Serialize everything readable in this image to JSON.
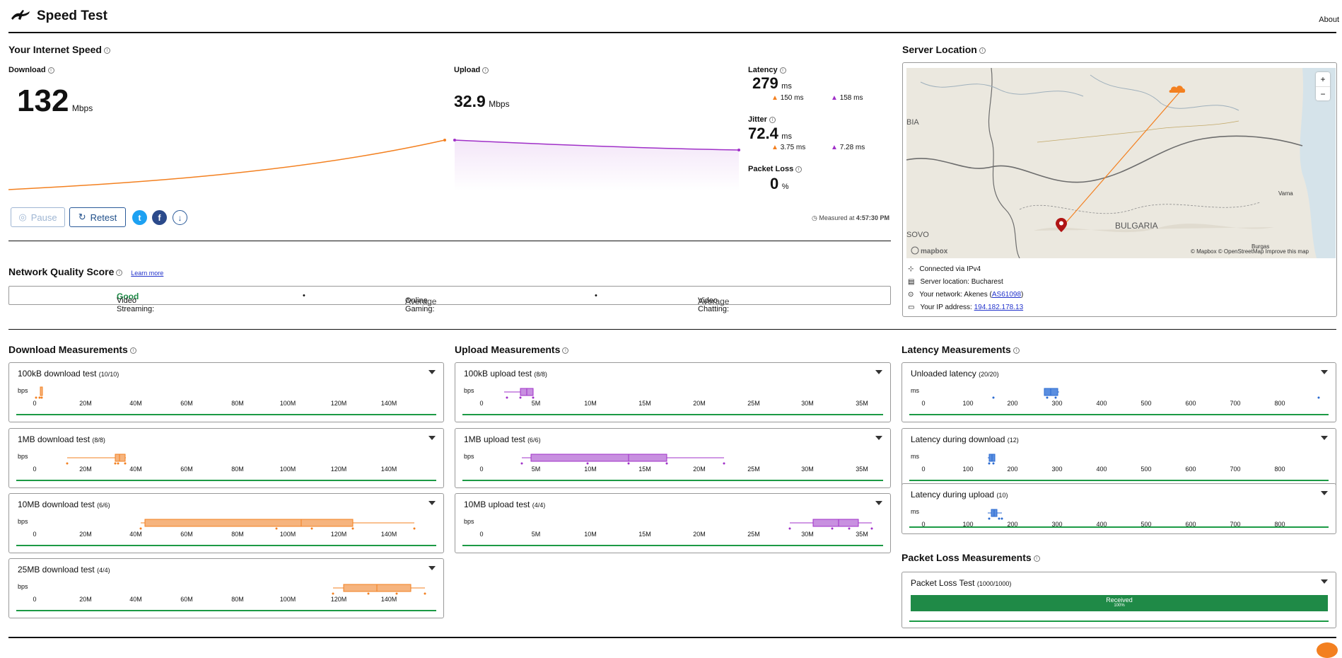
{
  "app": {
    "title": "Speed Test",
    "about": "About"
  },
  "speed": {
    "section_title": "Your Internet Speed",
    "download_label": "Download",
    "download_value": "132",
    "download_unit": "Mbps",
    "upload_label": "Upload",
    "upload_value": "32.9",
    "upload_unit": "Mbps",
    "latency_label": "Latency",
    "latency_value": "279",
    "latency_unit": "ms",
    "latency_down": "150 ms",
    "latency_up": "158 ms",
    "jitter_label": "Jitter",
    "jitter_value": "72.4",
    "jitter_unit": "ms",
    "jitter_down": "3.75 ms",
    "jitter_up": "7.28 ms",
    "packet_loss_label": "Packet Loss",
    "packet_loss_value": "0",
    "packet_loss_unit": "%",
    "pause_label": "Pause",
    "retest_label": "Retest",
    "measured_at_prefix": "Measured at",
    "measured_at_time": "4:57:30 PM"
  },
  "quality": {
    "title": "Network Quality Score",
    "learn_more": "Learn more",
    "items": [
      {
        "label": "Video Streaming:",
        "value": "Good",
        "color": "#1f8a47"
      },
      {
        "label": "Online Gaming:",
        "value": "Average",
        "color": "#444444"
      },
      {
        "label": "Video Chatting:",
        "value": "Average",
        "color": "#444444"
      }
    ],
    "separator": "•"
  },
  "server": {
    "title": "Server Location",
    "map_labels": {
      "bulgaria": "BULGARIA",
      "varna": "Varna",
      "burgas": "Burgas",
      "bia": "BIA",
      "sovo": "SOVO",
      "mapbox": "mapbox",
      "credits": "© Mapbox © OpenStreetMap  Improve this map",
      "zoom_in": "+",
      "zoom_out": "−"
    },
    "connected_via": "Connected via IPv4",
    "server_location": "Server location: Bucharest",
    "network_prefix": "Your network: Akenes (",
    "network_as": "AS61098",
    "network_suffix": ")",
    "ip_prefix": "Your IP address: ",
    "ip": "194.182.178.13"
  },
  "download": {
    "title": "Download Measurements",
    "ticks": [
      "0",
      "20M",
      "40M",
      "60M",
      "80M",
      "100M",
      "120M",
      "140M"
    ],
    "unit": "bps",
    "tests": [
      {
        "title": "100kB download test",
        "count": "(10/10)"
      },
      {
        "title": "1MB download test",
        "count": "(8/8)"
      },
      {
        "title": "10MB download test",
        "count": "(6/6)"
      },
      {
        "title": "25MB download test",
        "count": "(4/4)"
      }
    ]
  },
  "upload": {
    "title": "Upload Measurements",
    "ticks": [
      "0",
      "5M",
      "10M",
      "15M",
      "20M",
      "25M",
      "30M",
      "35M"
    ],
    "unit": "bps",
    "tests": [
      {
        "title": "100kB upload test",
        "count": "(8/8)"
      },
      {
        "title": "1MB upload test",
        "count": "(6/6)"
      },
      {
        "title": "10MB upload test",
        "count": "(4/4)"
      }
    ]
  },
  "latency": {
    "title": "Latency Measurements",
    "ticks": [
      "0",
      "100",
      "200",
      "300",
      "400",
      "500",
      "600",
      "700",
      "800"
    ],
    "unit": "ms",
    "tests": [
      {
        "title": "Unloaded latency",
        "count": "(20/20)"
      },
      {
        "title": "Latency during download",
        "count": "(12)"
      },
      {
        "title": "Latency during upload",
        "count": "(10)"
      }
    ]
  },
  "packet_loss": {
    "title": "Packet Loss Measurements",
    "test_title": "Packet Loss Test",
    "test_count": "(1000/1000)",
    "received_label": "Received",
    "received_pct": "100%"
  },
  "colors": {
    "download": "#f38020",
    "upload": "#a030c8",
    "latency": "#2a6ad0",
    "accent": "#1f4f8a",
    "good": "#1f8a47"
  }
}
